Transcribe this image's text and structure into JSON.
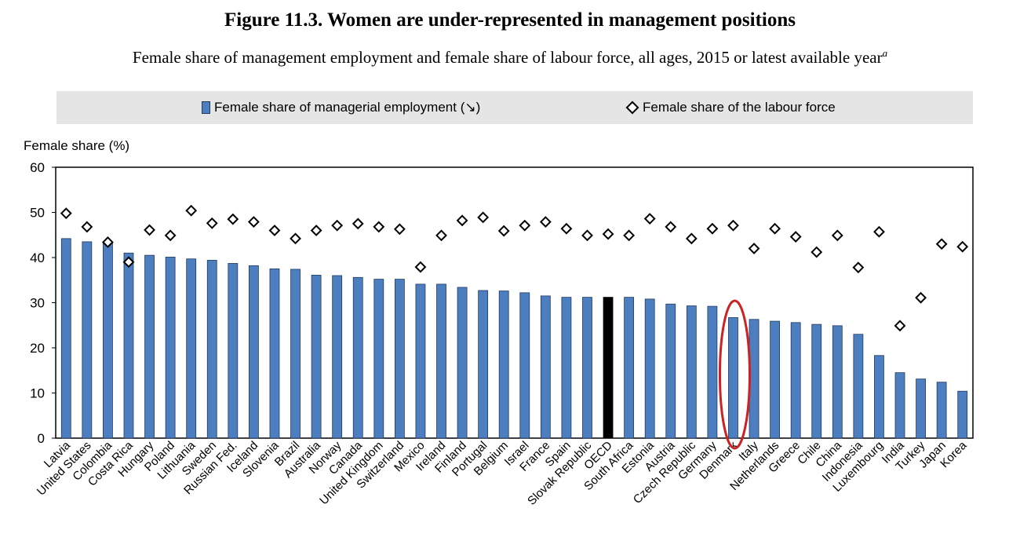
{
  "title": "Figure 11.3. Women are under-represented in management positions",
  "subtitle": "Female share of management employment and female share of labour force, all ages, 2015 or latest available year",
  "subtitle_note": "a",
  "legend": {
    "bar_label": "Female share of managerial employment (↘)",
    "diamond_label": "Female share of the labour force"
  },
  "colors": {
    "bar": "#4d7ebf",
    "highlight_bar": "#000000",
    "annotation": "#cc2222"
  },
  "chart_data": {
    "type": "bar",
    "ylabel": "Female share (%)",
    "ylim": [
      0,
      60
    ],
    "yticks": [
      0,
      10,
      20,
      30,
      40,
      50,
      60
    ],
    "grid": false,
    "legend_position": "top",
    "categories": [
      "Latvia",
      "United States",
      "Colombia",
      "Costa Rica",
      "Hungary",
      "Poland",
      "Lithuania",
      "Sweden",
      "Russian Fed.",
      "Iceland",
      "Slovenia",
      "Brazil",
      "Australia",
      "Norway",
      "Canada",
      "United Kingdom",
      "Switzerland",
      "Mexico",
      "Ireland",
      "Finland",
      "Portugal",
      "Belgium",
      "Israel",
      "France",
      "Spain",
      "Slovak Republic",
      "OECD",
      "South Africa",
      "Estonia",
      "Austria",
      "Czech Republic",
      "Germany",
      "Denmark",
      "Italy",
      "Netherlands",
      "Greece",
      "Chile",
      "China",
      "Indonesia",
      "Luxembourg",
      "India",
      "Turkey",
      "Japan",
      "Korea"
    ],
    "series": [
      {
        "name": "Female share of managerial employment (↘)",
        "type": "bar",
        "values": [
          44.2,
          43.5,
          43.2,
          41.0,
          40.5,
          40.1,
          39.7,
          39.4,
          38.7,
          38.2,
          37.5,
          37.4,
          36.1,
          36.0,
          35.6,
          35.2,
          35.2,
          34.1,
          34.1,
          33.4,
          32.7,
          32.6,
          32.2,
          31.5,
          31.2,
          31.2,
          31.2,
          31.2,
          30.8,
          29.7,
          29.3,
          29.2,
          26.7,
          26.3,
          25.9,
          25.6,
          25.2,
          24.9,
          23.0,
          18.3,
          14.5,
          13.1,
          12.4,
          10.4
        ]
      },
      {
        "name": "Female share of the labour force",
        "type": "scatter",
        "values": [
          49.8,
          46.8,
          43.4,
          39.0,
          46.1,
          44.9,
          50.4,
          47.6,
          48.5,
          47.9,
          46.0,
          44.2,
          46.0,
          47.1,
          47.5,
          46.8,
          46.3,
          37.9,
          44.9,
          48.2,
          48.9,
          45.9,
          47.1,
          47.9,
          46.4,
          44.9,
          45.2,
          44.9,
          48.6,
          46.8,
          44.2,
          46.4,
          47.1,
          42.0,
          46.4,
          44.6,
          41.2,
          44.9,
          37.8,
          45.7,
          24.9,
          31.1,
          43.0,
          42.4
        ]
      }
    ],
    "highlight_category": "OECD",
    "annotation": {
      "type": "ellipse",
      "category": "Denmark"
    }
  }
}
